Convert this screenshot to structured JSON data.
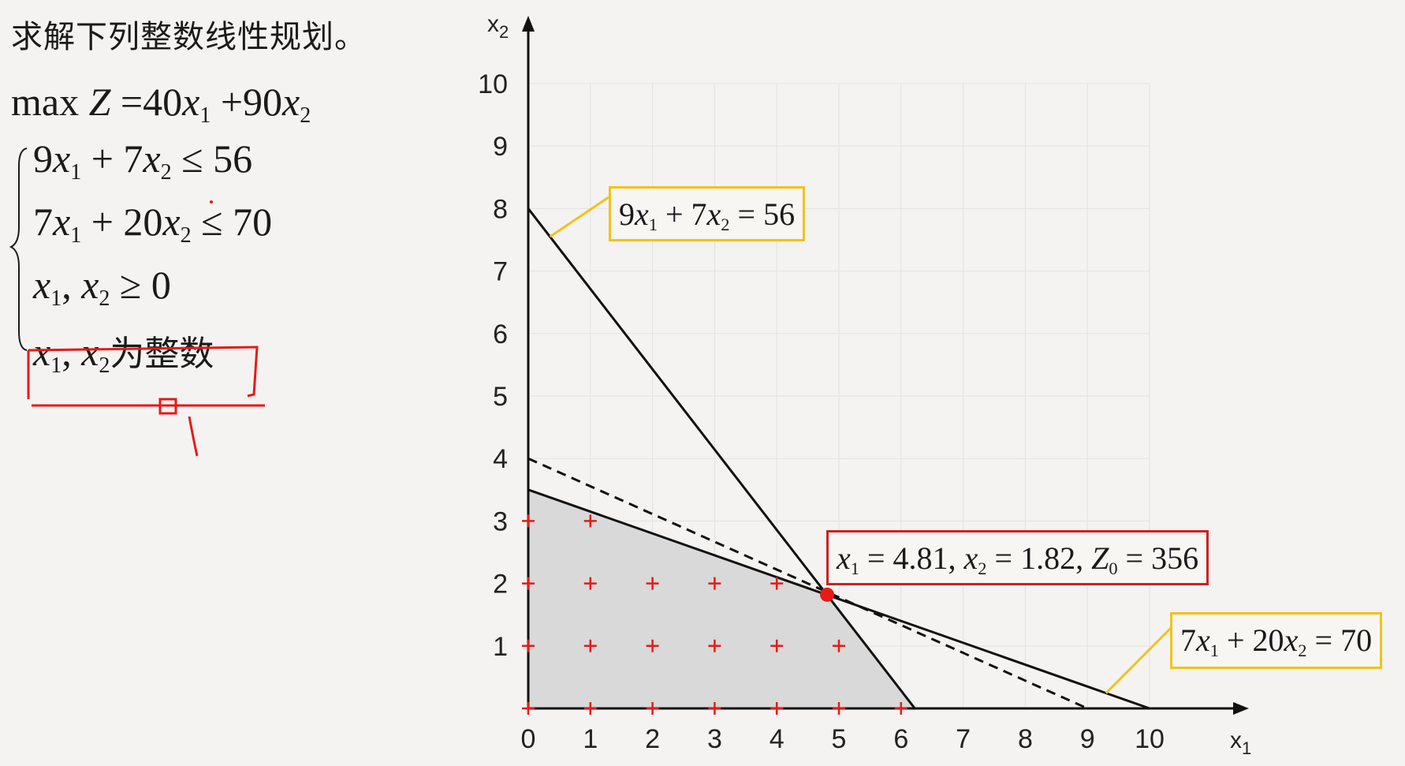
{
  "problem": {
    "title": "求解下列整数线性规划。",
    "objective": {
      "prefix": "max",
      "lhs": "Z",
      "eq": "=",
      "c1": "40",
      "op": "+",
      "c2": "90"
    },
    "constraints": [
      {
        "c1": "9",
        "c2": "7",
        "rel": "≤",
        "rhs": "56"
      },
      {
        "c1": "7",
        "c2": "20",
        "rel": "≤",
        "rhs": "70"
      }
    ],
    "nonneg": {
      "rel": "≥",
      "rhs": "0"
    },
    "integer_text": "为整数"
  },
  "callouts": {
    "line1": {
      "c1": "9",
      "c2": "7",
      "rhs": "56"
    },
    "line2": {
      "c1": "7",
      "c2": "20",
      "rhs": "70"
    },
    "optimum": {
      "x1_val": "4.81",
      "x2_val": "1.82",
      "z_val": "356"
    }
  },
  "chart_data": {
    "type": "line",
    "xlabel": "x1",
    "ylabel": "x2",
    "xlim": [
      0,
      10
    ],
    "ylim": [
      0,
      10
    ],
    "x_ticks": [
      0,
      1,
      2,
      3,
      4,
      5,
      6,
      7,
      8,
      9,
      10
    ],
    "y_ticks": [
      1,
      2,
      3,
      4,
      5,
      6,
      7,
      8,
      9,
      10
    ],
    "grid": true,
    "series": [
      {
        "name": "9x1+7x2=56",
        "style": "solid",
        "points": [
          [
            0,
            8
          ],
          [
            6.222,
            0
          ]
        ]
      },
      {
        "name": "7x1+20x2=70",
        "style": "solid",
        "points": [
          [
            0,
            3.5
          ],
          [
            10,
            0
          ]
        ]
      },
      {
        "style": "dashed",
        "points": [
          [
            0,
            4
          ],
          [
            9,
            0
          ]
        ]
      }
    ],
    "feasible_region": [
      [
        0,
        0
      ],
      [
        0,
        3.5
      ],
      [
        4.81,
        1.82
      ],
      [
        6.222,
        0
      ]
    ],
    "integer_points": [
      [
        0,
        0
      ],
      [
        1,
        0
      ],
      [
        2,
        0
      ],
      [
        3,
        0
      ],
      [
        4,
        0
      ],
      [
        5,
        0
      ],
      [
        6,
        0
      ],
      [
        0,
        1
      ],
      [
        1,
        1
      ],
      [
        2,
        1
      ],
      [
        3,
        1
      ],
      [
        4,
        1
      ],
      [
        5,
        1
      ],
      [
        0,
        2
      ],
      [
        1,
        2
      ],
      [
        2,
        2
      ],
      [
        3,
        2
      ],
      [
        4,
        2
      ],
      [
        0,
        3
      ],
      [
        1,
        3
      ]
    ],
    "optimum": {
      "x1": 4.81,
      "x2": 1.82,
      "z": 356
    },
    "colors": {
      "lines": "#111111",
      "region": "#d9d9d9",
      "points": "#e31b1b",
      "optimum": "#e31b1b",
      "callout_yellow": "#f2c21b",
      "callout_red": "#c82424",
      "grid": "#e2e2e2"
    }
  }
}
